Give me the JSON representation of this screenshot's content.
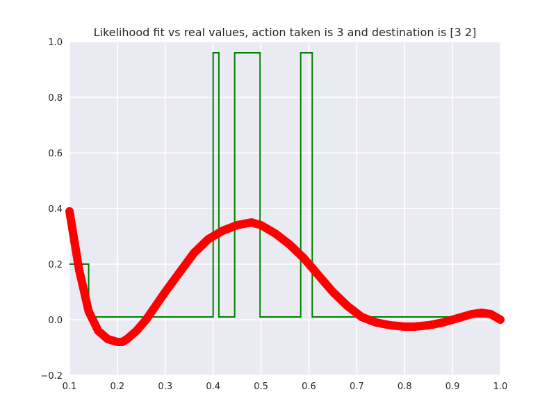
{
  "chart_data": {
    "type": "line",
    "title": "Likelihood fit vs real values, action taken is 3 and destination is [3 2]",
    "xlabel": "",
    "ylabel": "",
    "xlim": [
      0.1,
      1.0
    ],
    "ylim": [
      -0.2,
      1.0
    ],
    "grid": true,
    "legend": "none",
    "x_ticks": [
      "0.1",
      "0.2",
      "0.3",
      "0.4",
      "0.5",
      "0.6",
      "0.7",
      "0.8",
      "0.9",
      "1.0"
    ],
    "y_ticks": [
      "−0.2",
      "0.0",
      "0.2",
      "0.4",
      "0.6",
      "0.8",
      "1.0"
    ],
    "colors": {
      "background": "#eaeaf2",
      "grid": "#ffffff",
      "step_series": "#008000",
      "fit_series": "#ff0000"
    },
    "series": [
      {
        "style": "step",
        "color": "#008000",
        "x": [
          0.1,
          0.14,
          0.14,
          0.4,
          0.4,
          0.412,
          0.412,
          0.445,
          0.445,
          0.498,
          0.498,
          0.583,
          0.583,
          0.607,
          0.607,
          1.0
        ],
        "y": [
          0.2,
          0.2,
          0.01,
          0.01,
          0.96,
          0.96,
          0.01,
          0.01,
          0.96,
          0.96,
          0.01,
          0.01,
          0.96,
          0.96,
          0.01,
          0.01
        ]
      },
      {
        "style": "thick-line",
        "color": "#ff0000",
        "x": [
          0.1,
          0.12,
          0.14,
          0.16,
          0.18,
          0.2,
          0.21,
          0.22,
          0.24,
          0.26,
          0.28,
          0.3,
          0.33,
          0.36,
          0.39,
          0.42,
          0.45,
          0.48,
          0.5,
          0.53,
          0.56,
          0.59,
          0.62,
          0.65,
          0.68,
          0.71,
          0.74,
          0.77,
          0.8,
          0.82,
          0.85,
          0.88,
          0.91,
          0.94,
          0.96,
          0.98,
          1.0
        ],
        "y": [
          0.39,
          0.18,
          0.03,
          -0.04,
          -0.07,
          -0.08,
          -0.08,
          -0.07,
          -0.04,
          0.0,
          0.05,
          0.1,
          0.17,
          0.24,
          0.29,
          0.32,
          0.34,
          0.35,
          0.34,
          0.31,
          0.27,
          0.22,
          0.16,
          0.1,
          0.05,
          0.01,
          -0.01,
          -0.02,
          -0.025,
          -0.025,
          -0.02,
          -0.01,
          0.005,
          0.02,
          0.025,
          0.02,
          0.0
        ]
      }
    ]
  }
}
